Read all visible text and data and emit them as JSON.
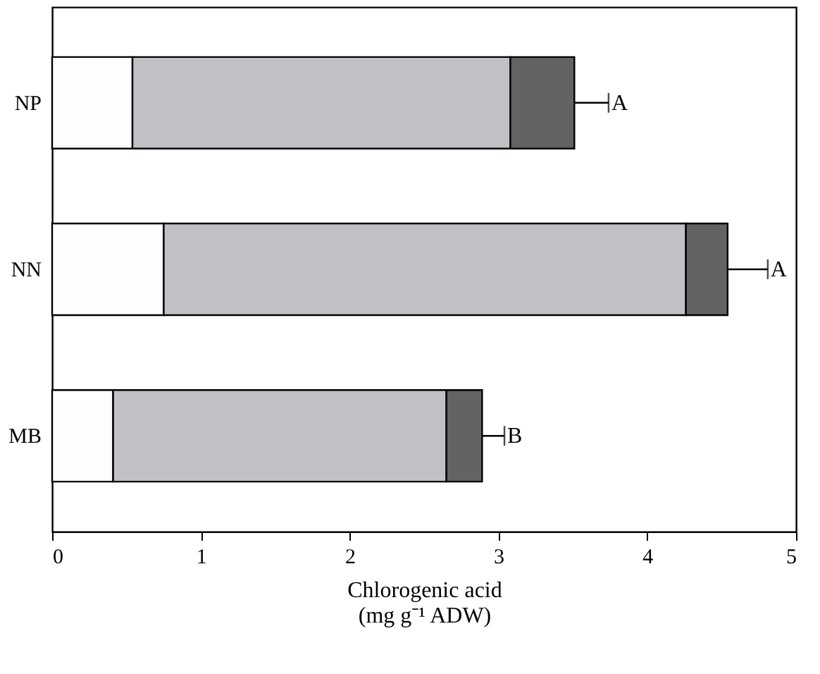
{
  "chart_data": {
    "type": "bar",
    "orientation": "horizontal",
    "stacked": true,
    "xlabel": "Chlorogenic acid\n(mg g⁻¹ ADW)",
    "categories": [
      "NP",
      "NN",
      "MB"
    ],
    "series": [
      {
        "color": "#fdfdfd",
        "values": [
          0.54,
          0.75,
          0.41
        ]
      },
      {
        "color": "#c0c1c4",
        "values": [
          2.54,
          3.51,
          2.24
        ]
      },
      {
        "color": "#636365",
        "values": [
          0.43,
          0.28,
          0.24
        ],
        "errors": [
          [
            3.51,
            3.74
          ],
          [
            4.54,
            4.81
          ],
          [
            2.89,
            3.04
          ]
        ]
      }
    ],
    "xlim": [
      0,
      5
    ],
    "xticks": [
      0,
      1,
      2,
      3,
      4,
      5
    ],
    "grid": false,
    "annotations": [
      {
        "text": "A",
        "x": 3.74,
        "y": "NP"
      },
      {
        "text": "A",
        "x": 4.81,
        "y": "NN"
      },
      {
        "text": "B",
        "x": 3.04,
        "y": "MB"
      }
    ]
  }
}
